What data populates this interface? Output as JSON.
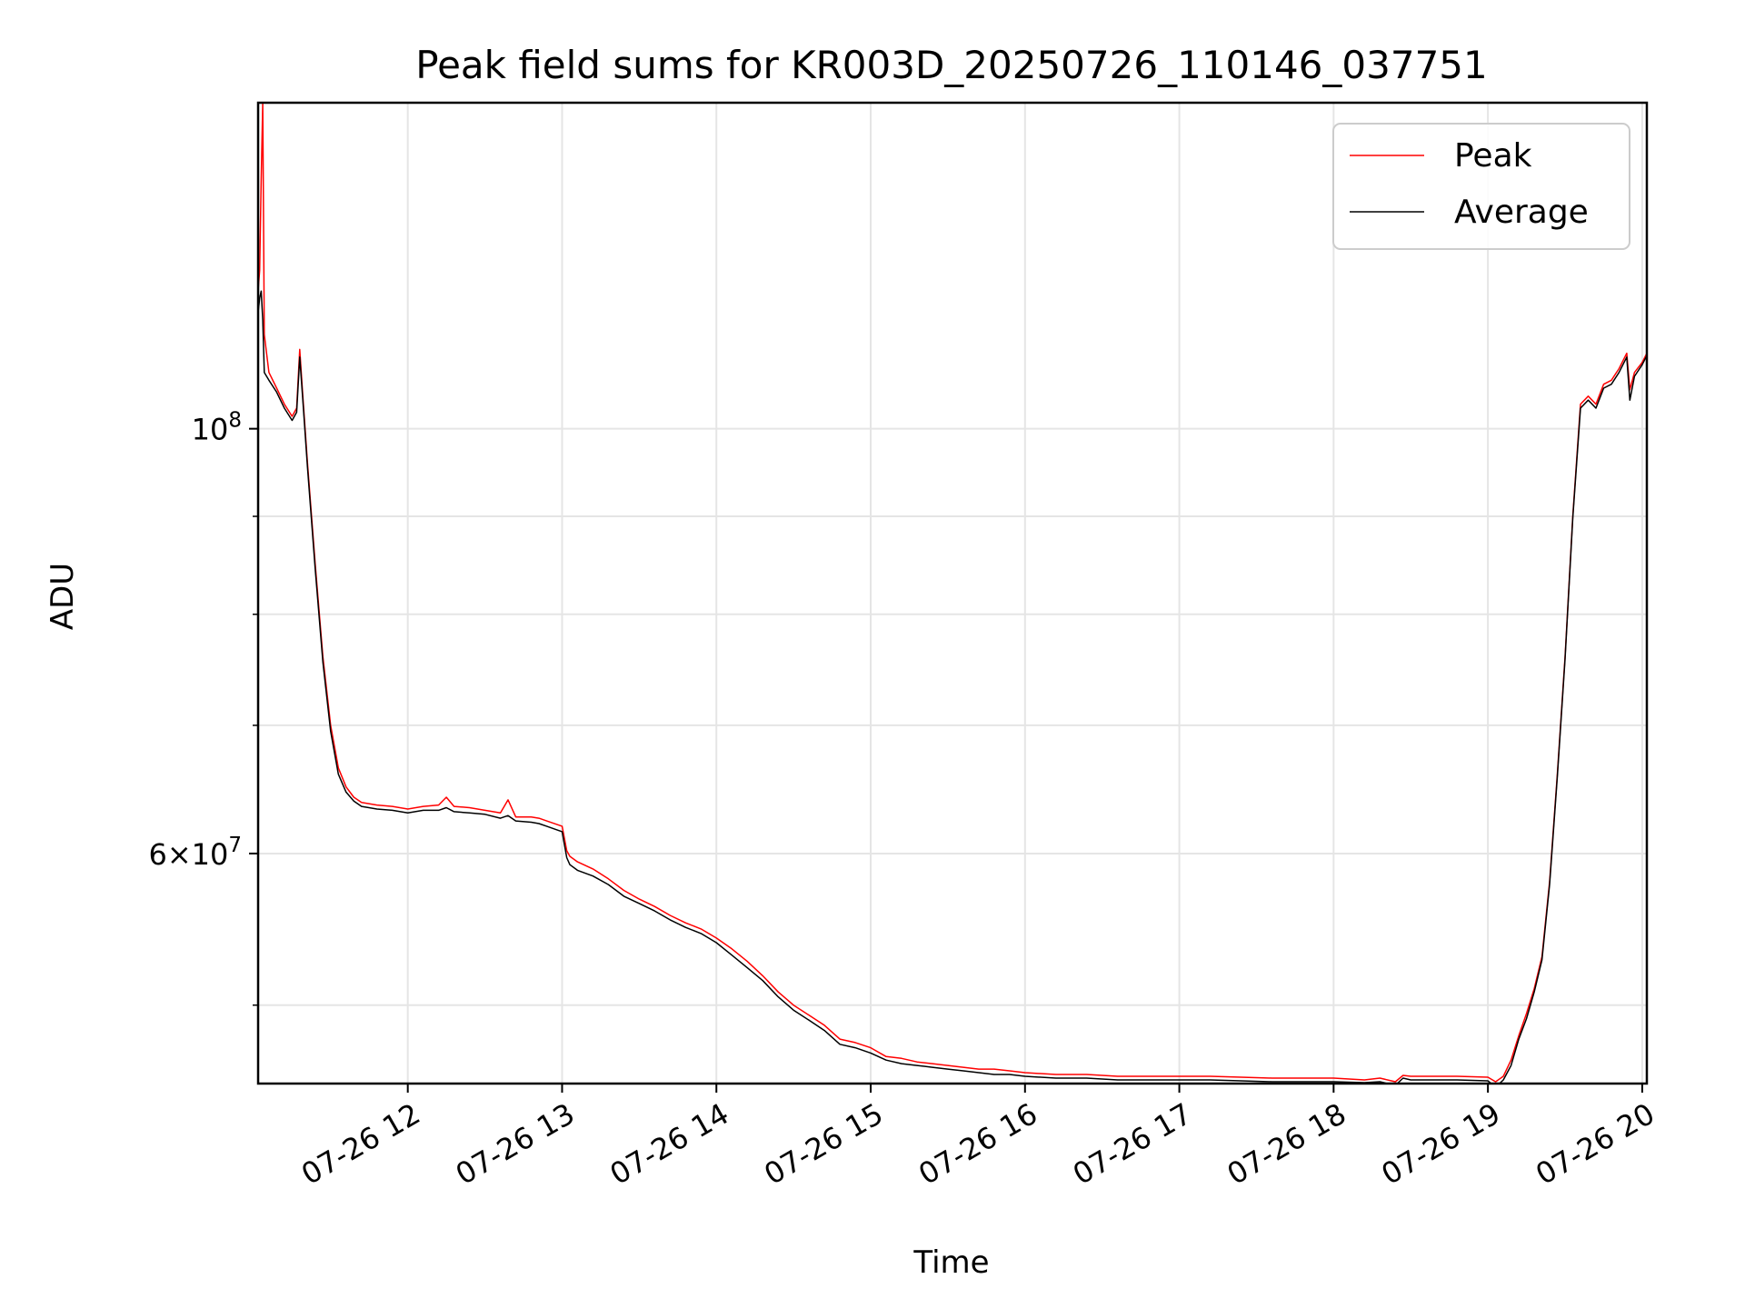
{
  "chart_data": {
    "type": "line",
    "title": "Peak field sums for KR003D_20250726_110146_037751",
    "xlabel": "Time",
    "ylabel": "ADU",
    "yscale": "log",
    "grid": true,
    "legend_position": "top-right",
    "x_tick_labels": [
      "07-26 12",
      "07-26 13",
      "07-26 14",
      "07-26 15",
      "07-26 16",
      "07-26 17",
      "07-26 18",
      "07-26 19",
      "07-26 20"
    ],
    "x_tick_hours": [
      12,
      13,
      14,
      15,
      16,
      17,
      18,
      19,
      20
    ],
    "xlim_hours": [
      11.03,
      20.03
    ],
    "y_major_ticks": [
      {
        "value": 100000000,
        "mantissa": "10",
        "exponent": "8"
      },
      {
        "value": 60000000,
        "mantissa": "6×10",
        "exponent": "7"
      }
    ],
    "y_minor_ticks": [
      50000000,
      70000000,
      80000000,
      90000000
    ],
    "ylim": [
      45500000,
      148000000
    ],
    "series": [
      {
        "name": "Peak",
        "color": "#ff0000",
        "x_hours": [
          11.03,
          11.04,
          11.05,
          11.06,
          11.07,
          11.1,
          11.15,
          11.2,
          11.25,
          11.28,
          11.3,
          11.32,
          11.35,
          11.4,
          11.45,
          11.5,
          11.55,
          11.6,
          11.65,
          11.7,
          11.8,
          11.9,
          12.0,
          12.1,
          12.2,
          12.25,
          12.3,
          12.4,
          12.5,
          12.6,
          12.65,
          12.7,
          12.8,
          12.85,
          12.9,
          13.0,
          13.03,
          13.05,
          13.1,
          13.2,
          13.3,
          13.4,
          13.5,
          13.6,
          13.7,
          13.8,
          13.9,
          14.0,
          14.1,
          14.2,
          14.3,
          14.4,
          14.5,
          14.6,
          14.7,
          14.8,
          14.9,
          15.0,
          15.1,
          15.2,
          15.3,
          15.4,
          15.5,
          15.6,
          15.7,
          15.8,
          15.9,
          16.0,
          16.2,
          16.4,
          16.6,
          16.8,
          17.0,
          17.2,
          17.4,
          17.6,
          17.8,
          18.0,
          18.2,
          18.3,
          18.4,
          18.45,
          18.5,
          18.6,
          18.8,
          19.0,
          19.05,
          19.1,
          19.15,
          19.2,
          19.25,
          19.3,
          19.35,
          19.4,
          19.45,
          19.5,
          19.55,
          19.6,
          19.65,
          19.7,
          19.75,
          19.8,
          19.85,
          19.9,
          19.92,
          19.95,
          20.0,
          20.03
        ],
        "values": [
          118000000,
          121000000,
          135000000,
          148000000,
          112000000,
          107000000,
          105000000,
          103000000,
          101500000,
          102500000,
          110000000,
          104000000,
          96000000,
          85000000,
          76000000,
          70000000,
          66500000,
          65000000,
          64200000,
          63800000,
          63600000,
          63500000,
          63300000,
          63500000,
          63600000,
          64200000,
          63500000,
          63400000,
          63200000,
          63000000,
          64000000,
          62700000,
          62700000,
          62600000,
          62400000,
          62000000,
          60200000,
          59800000,
          59400000,
          58900000,
          58200000,
          57400000,
          56800000,
          56300000,
          55700000,
          55200000,
          54800000,
          54200000,
          53500000,
          52700000,
          51800000,
          50800000,
          50000000,
          49400000,
          48800000,
          48000000,
          47800000,
          47500000,
          47000000,
          46900000,
          46700000,
          46600000,
          46500000,
          46400000,
          46300000,
          46300000,
          46200000,
          46100000,
          46000000,
          46000000,
          45900000,
          45900000,
          45900000,
          45900000,
          45850000,
          45800000,
          45800000,
          45800000,
          45700000,
          45800000,
          45600000,
          45950000,
          45900000,
          45900000,
          45900000,
          45850000,
          45600000,
          45900000,
          46800000,
          48200000,
          49500000,
          51000000,
          53000000,
          58000000,
          66000000,
          76000000,
          90000000,
          103000000,
          104000000,
          103000000,
          105500000,
          106000000,
          107500000,
          109500000,
          104800000,
          107000000,
          108300000,
          109500000
        ]
      },
      {
        "name": "Average",
        "color": "#000000",
        "x_hours": [
          11.03,
          11.04,
          11.05,
          11.06,
          11.07,
          11.1,
          11.15,
          11.2,
          11.25,
          11.28,
          11.3,
          11.32,
          11.35,
          11.4,
          11.45,
          11.5,
          11.55,
          11.6,
          11.65,
          11.7,
          11.8,
          11.9,
          12.0,
          12.1,
          12.2,
          12.25,
          12.3,
          12.4,
          12.5,
          12.6,
          12.65,
          12.7,
          12.8,
          12.85,
          12.9,
          13.0,
          13.03,
          13.05,
          13.1,
          13.2,
          13.3,
          13.4,
          13.5,
          13.6,
          13.7,
          13.8,
          13.9,
          14.0,
          14.1,
          14.2,
          14.3,
          14.4,
          14.5,
          14.6,
          14.7,
          14.8,
          14.9,
          15.0,
          15.1,
          15.2,
          15.3,
          15.4,
          15.5,
          15.6,
          15.7,
          15.8,
          15.9,
          16.0,
          16.2,
          16.4,
          16.6,
          16.8,
          17.0,
          17.2,
          17.4,
          17.6,
          17.8,
          18.0,
          18.2,
          18.3,
          18.4,
          18.45,
          18.5,
          18.6,
          18.8,
          19.0,
          19.05,
          19.1,
          19.15,
          19.2,
          19.25,
          19.3,
          19.35,
          19.4,
          19.45,
          19.5,
          19.55,
          19.6,
          19.65,
          19.7,
          19.75,
          19.8,
          19.85,
          19.9,
          19.92,
          19.95,
          20.0,
          20.03
        ],
        "values": [
          115000000,
          117000000,
          118000000,
          114000000,
          107000000,
          106000000,
          104500000,
          102500000,
          101000000,
          102000000,
          109000000,
          103500000,
          95500000,
          84500000,
          75500000,
          69500000,
          66000000,
          64600000,
          63900000,
          63500000,
          63300000,
          63200000,
          63000000,
          63200000,
          63200000,
          63400000,
          63100000,
          63000000,
          62900000,
          62600000,
          62800000,
          62400000,
          62300000,
          62200000,
          62000000,
          61600000,
          59700000,
          59200000,
          58800000,
          58400000,
          57800000,
          57000000,
          56500000,
          56000000,
          55400000,
          54900000,
          54500000,
          53900000,
          53100000,
          52300000,
          51500000,
          50500000,
          49700000,
          49100000,
          48500000,
          47700000,
          47500000,
          47200000,
          46800000,
          46600000,
          46500000,
          46400000,
          46300000,
          46200000,
          46100000,
          46000000,
          46000000,
          45900000,
          45800000,
          45800000,
          45700000,
          45700000,
          45700000,
          45700000,
          45650000,
          45600000,
          45600000,
          45600000,
          45550000,
          45600000,
          45400000,
          45800000,
          45700000,
          45700000,
          45700000,
          45650000,
          45300000,
          45700000,
          46500000,
          48000000,
          49200000,
          50800000,
          52800000,
          57800000,
          65800000,
          75800000,
          89800000,
          102500000,
          103500000,
          102500000,
          105000000,
          105500000,
          107000000,
          109000000,
          103500000,
          106500000,
          108000000,
          109200000
        ]
      }
    ]
  }
}
